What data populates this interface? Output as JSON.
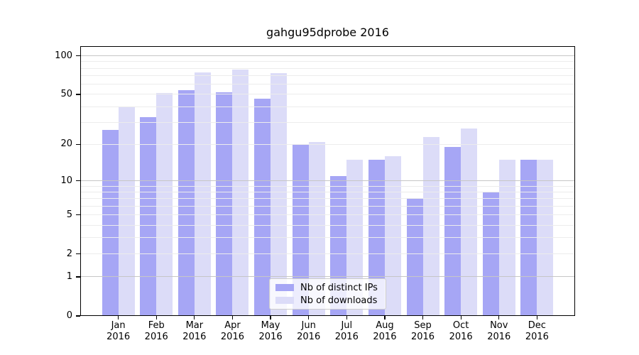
{
  "chart_data": {
    "type": "bar",
    "title": "gahgu95dprobe 2016",
    "year": "2016",
    "categories": [
      "Jan",
      "Feb",
      "Mar",
      "Apr",
      "May",
      "Jun",
      "Jul",
      "Aug",
      "Sep",
      "Oct",
      "Nov",
      "Dec"
    ],
    "series": [
      {
        "name": "Nb of distinct IPs",
        "color": "#a6a6f5",
        "values": [
          26,
          33,
          54,
          52,
          46,
          20,
          11,
          15,
          7,
          19,
          8,
          15
        ]
      },
      {
        "name": "Nb of downloads",
        "color": "#dcdcf8",
        "values": [
          40,
          51,
          74,
          78,
          73,
          21,
          15,
          16,
          23,
          27,
          15,
          15
        ]
      }
    ],
    "y_axis": {
      "scale": "log1p",
      "major_ticks": [
        0,
        1,
        2,
        5,
        10,
        20,
        50,
        100
      ],
      "emphasized_gridlines": [
        1,
        10,
        100
      ],
      "minor_gridlines": [
        3,
        4,
        6,
        7,
        8,
        9,
        30,
        40,
        60,
        70,
        80,
        90
      ],
      "top_value": 119
    },
    "legend": {
      "position": "lower center",
      "entries": [
        "Nb of distinct IPs",
        "Nb of downloads"
      ]
    },
    "colors": {
      "grid_emphasized": "#c6c6c6",
      "grid_light": "#ececec",
      "axis": "#000000",
      "background": "#ffffff"
    },
    "xlabel": "",
    "ylabel": ""
  }
}
